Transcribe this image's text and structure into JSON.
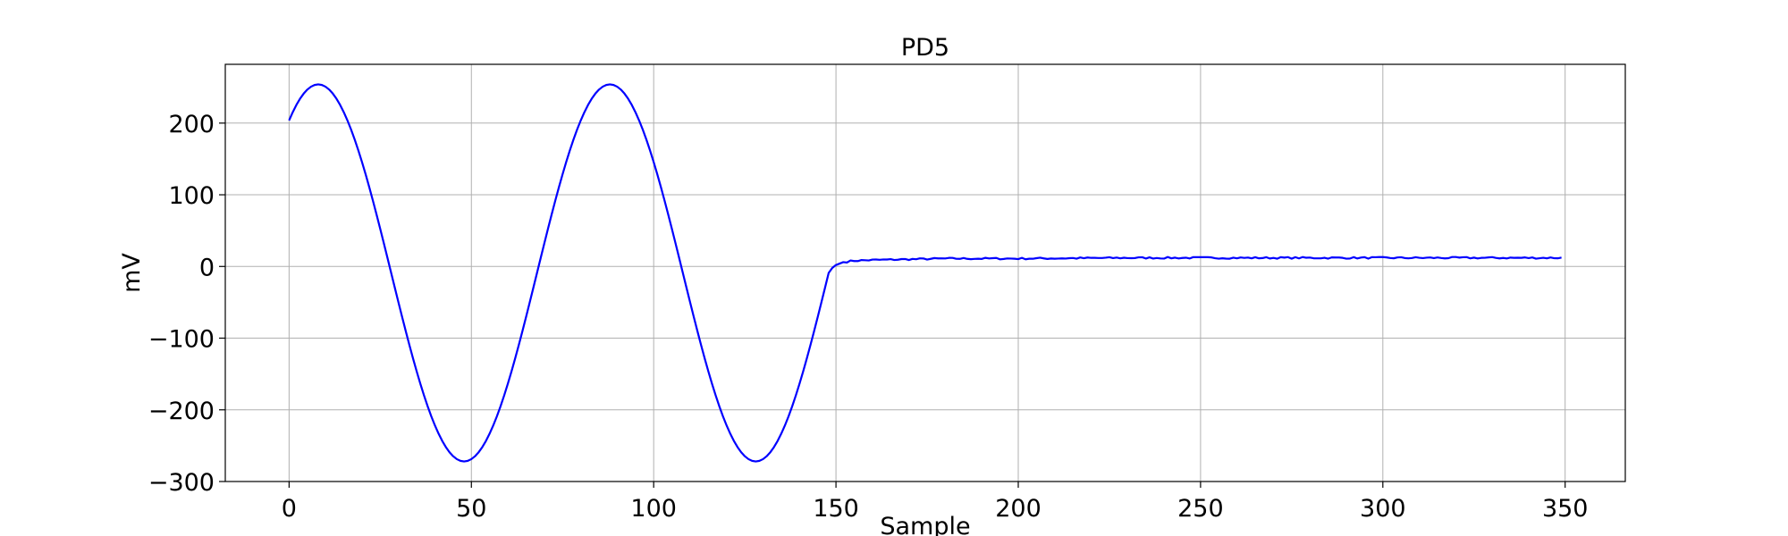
{
  "chart_data": {
    "type": "line",
    "title": "PD5",
    "xlabel": "Sample",
    "ylabel": "mV",
    "xlim": [
      -17.5,
      366.5
    ],
    "ylim": [
      -300,
      282
    ],
    "xticks": [
      0,
      50,
      100,
      150,
      200,
      250,
      300,
      350
    ],
    "yticks": [
      -300,
      -200,
      -100,
      0,
      100,
      200
    ],
    "grid": true,
    "legend": null,
    "series": [
      {
        "color": "#0000ff",
        "segments": [
          {
            "kind": "sine",
            "x0": 0,
            "x1": 148,
            "amplitude": 263,
            "period": 80,
            "center": -9,
            "phase_x": 8
          },
          {
            "kind": "points",
            "x": [
              148,
              150,
              152,
              155,
              160,
              170,
              180,
              200,
              230,
              260,
              300,
              330,
              349
            ],
            "y": [
              -6,
              2,
              6,
              8,
              9,
              10,
              11,
              11,
              12,
              12,
              12,
              12,
              12
            ]
          }
        ],
        "noise_amplitude": 1.2
      }
    ]
  }
}
